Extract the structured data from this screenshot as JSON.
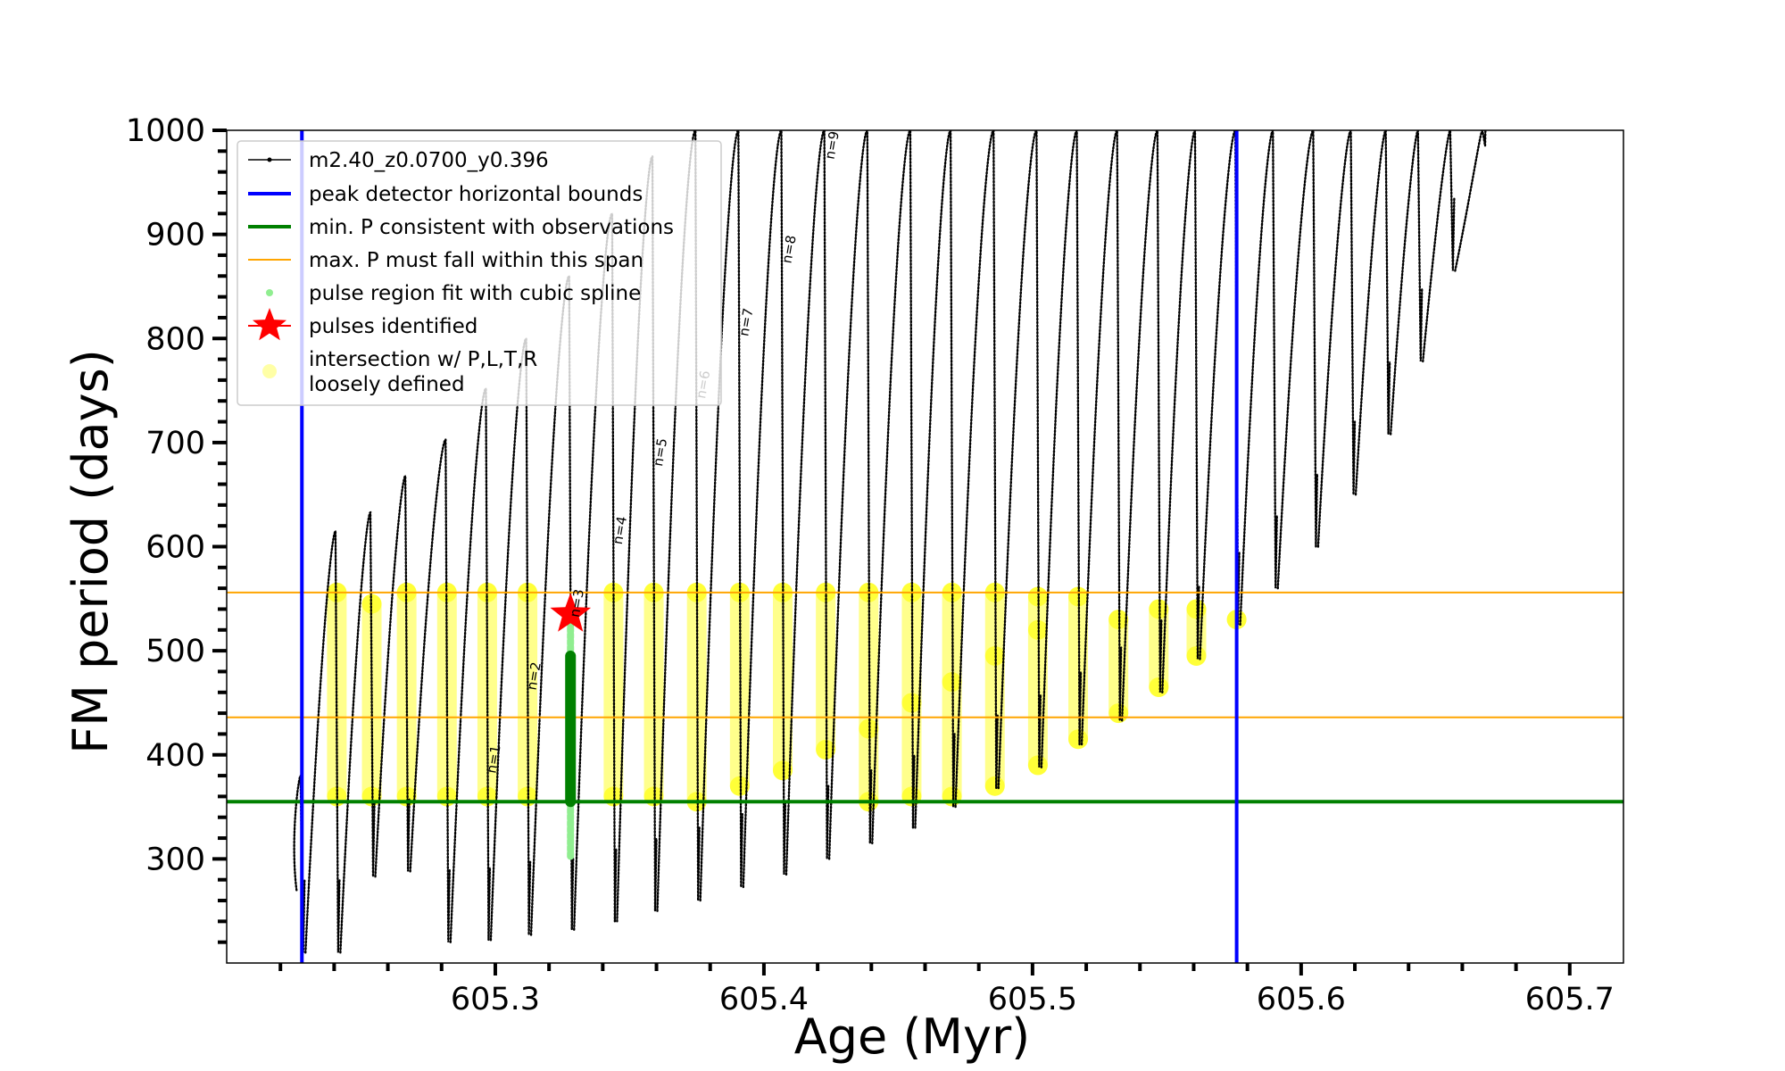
{
  "chart_data": {
    "type": "line",
    "title": "",
    "xlabel": "Age (Myr)",
    "ylabel": "FM period (days)",
    "xlim": [
      605.2,
      605.72
    ],
    "ylim": [
      200,
      1000
    ],
    "x_ticks": [
      605.3,
      605.4,
      605.5,
      605.6,
      605.7
    ],
    "x_tick_labels": [
      "605.3",
      "605.4",
      "605.5",
      "605.6",
      "605.7"
    ],
    "y_ticks": [
      300,
      400,
      500,
      600,
      700,
      800,
      900,
      1000
    ],
    "y_tick_labels": [
      "300",
      "400",
      "500",
      "600",
      "700",
      "800",
      "900",
      "1000"
    ],
    "grid": false,
    "legend_position": "top-left",
    "colors": {
      "model": "#000000",
      "bounds": "#0000ff",
      "minP": "#008000",
      "maxP": "#ffa500",
      "spline": "#90ee90",
      "fit_points": "#008000",
      "pulse": "#ff0000",
      "loose": "#ffff00"
    },
    "legend": [
      {
        "key": "model",
        "label": "m2.40_z0.0700_y0.396"
      },
      {
        "key": "bounds",
        "label": "peak detector horizontal bounds"
      },
      {
        "key": "minP",
        "label": "min. P consistent with observations"
      },
      {
        "key": "maxP",
        "label": "max. P must fall within this span"
      },
      {
        "key": "spline",
        "label": "pulse region fit with cubic spline"
      },
      {
        "key": "pulse",
        "label": "pulses identified"
      },
      {
        "key": "loose",
        "label": "intersection w/ P,L,T,R\nloosely defined"
      }
    ],
    "peak_detector_bounds": [
      605.228,
      605.576
    ],
    "min_period": 355,
    "max_period_span": [
      436,
      556
    ],
    "pulse_identified": {
      "x": 605.328,
      "y": 535
    },
    "spline_fit": {
      "x": 605.328,
      "y_min": 300,
      "y_max": 540,
      "dark_min": 355,
      "dark_max": 495
    },
    "pulses": [
      {
        "x": 605.228,
        "top": 380,
        "bottom": 210
      },
      {
        "x": 605.241,
        "top": 615,
        "bottom": 210
      },
      {
        "x": 605.254,
        "top": 633,
        "bottom": 283
      },
      {
        "x": 605.267,
        "top": 668,
        "bottom": 288
      },
      {
        "x": 605.282,
        "top": 703,
        "bottom": 220
      },
      {
        "x": 605.297,
        "top": 752,
        "bottom": 222
      },
      {
        "x": 605.312,
        "top": 800,
        "bottom": 227
      },
      {
        "x": 605.328,
        "top": 860,
        "bottom": 232
      },
      {
        "x": 605.344,
        "top": 920,
        "bottom": 240
      },
      {
        "x": 605.359,
        "top": 975,
        "bottom": 250
      },
      {
        "x": 605.375,
        "top": 1000,
        "bottom": 260
      },
      {
        "x": 605.391,
        "top": 1000,
        "bottom": 273
      },
      {
        "x": 605.407,
        "top": 1000,
        "bottom": 285
      },
      {
        "x": 605.423,
        "top": 1000,
        "bottom": 300
      },
      {
        "x": 605.439,
        "top": 1000,
        "bottom": 315
      },
      {
        "x": 605.455,
        "top": 1000,
        "bottom": 330
      },
      {
        "x": 605.47,
        "top": 1000,
        "bottom": 350
      },
      {
        "x": 605.486,
        "top": 1000,
        "bottom": 368
      },
      {
        "x": 605.502,
        "top": 1000,
        "bottom": 388
      },
      {
        "x": 605.517,
        "top": 1000,
        "bottom": 410
      },
      {
        "x": 605.532,
        "top": 1000,
        "bottom": 433
      },
      {
        "x": 605.547,
        "top": 1000,
        "bottom": 460
      },
      {
        "x": 605.561,
        "top": 1000,
        "bottom": 492
      },
      {
        "x": 605.576,
        "top": 1000,
        "bottom": 525
      },
      {
        "x": 605.59,
        "top": 1000,
        "bottom": 560
      },
      {
        "x": 605.605,
        "top": 1000,
        "bottom": 600
      },
      {
        "x": 605.619,
        "top": 1000,
        "bottom": 650
      },
      {
        "x": 605.632,
        "top": 1000,
        "bottom": 708
      },
      {
        "x": 605.644,
        "top": 1000,
        "bottom": 778
      },
      {
        "x": 605.656,
        "top": 1000,
        "bottom": 865
      },
      {
        "x": 605.668,
        "top": 1000,
        "bottom": 985
      }
    ],
    "loose_marks": [
      {
        "x": 605.241,
        "ys": [
          556,
          360
        ]
      },
      {
        "x": 605.254,
        "ys": [
          545,
          360
        ]
      },
      {
        "x": 605.267,
        "ys": [
          556,
          360
        ]
      },
      {
        "x": 605.282,
        "ys": [
          556,
          360
        ]
      },
      {
        "x": 605.297,
        "ys": [
          556,
          360
        ]
      },
      {
        "x": 605.312,
        "ys": [
          556,
          360
        ]
      },
      {
        "x": 605.344,
        "ys": [
          556,
          360
        ]
      },
      {
        "x": 605.359,
        "ys": [
          556,
          360
        ]
      },
      {
        "x": 605.375,
        "ys": [
          556,
          355
        ]
      },
      {
        "x": 605.391,
        "ys": [
          556,
          370
        ]
      },
      {
        "x": 605.407,
        "ys": [
          556,
          385
        ]
      },
      {
        "x": 605.423,
        "ys": [
          556,
          405
        ]
      },
      {
        "x": 605.439,
        "ys": [
          556,
          425,
          355
        ]
      },
      {
        "x": 605.455,
        "ys": [
          556,
          450,
          360
        ]
      },
      {
        "x": 605.47,
        "ys": [
          556,
          470,
          360
        ]
      },
      {
        "x": 605.486,
        "ys": [
          556,
          495,
          370
        ]
      },
      {
        "x": 605.502,
        "ys": [
          552,
          520,
          390
        ]
      },
      {
        "x": 605.517,
        "ys": [
          552,
          415
        ]
      },
      {
        "x": 605.532,
        "ys": [
          530,
          440
        ]
      },
      {
        "x": 605.547,
        "ys": [
          540,
          465
        ]
      },
      {
        "x": 605.561,
        "ys": [
          540,
          495
        ]
      },
      {
        "x": 605.576,
        "ys": [
          530
        ]
      }
    ],
    "annotations": [
      {
        "text": "n=1",
        "x": 605.301,
        "y": 395
      },
      {
        "text": "n=2",
        "x": 605.316,
        "y": 475
      },
      {
        "text": "n=3",
        "x": 605.332,
        "y": 545
      },
      {
        "text": "n=4",
        "x": 605.348,
        "y": 615
      },
      {
        "text": "n=5",
        "x": 605.363,
        "y": 690
      },
      {
        "text": "n=6",
        "x": 605.379,
        "y": 755
      },
      {
        "text": "n=7",
        "x": 605.395,
        "y": 815
      },
      {
        "text": "n=8",
        "x": 605.411,
        "y": 885
      },
      {
        "text": "n=9",
        "x": 605.427,
        "y": 985
      }
    ]
  }
}
